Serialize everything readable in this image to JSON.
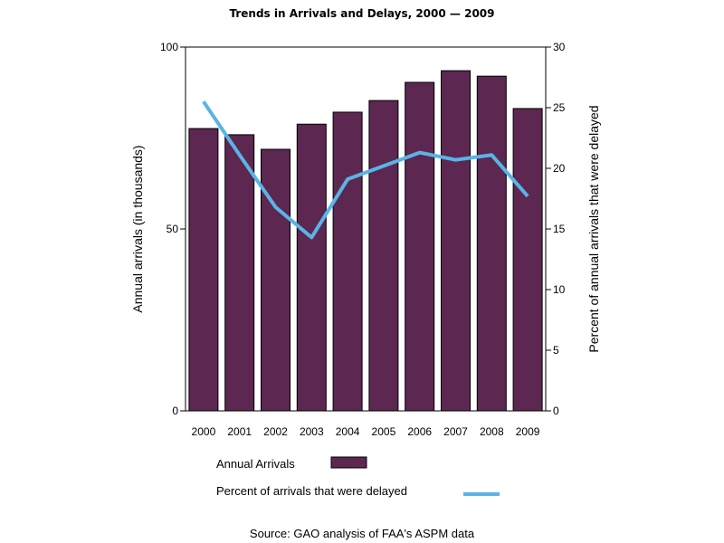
{
  "chart_data": {
    "type": "bar",
    "title": "Trends in Arrivals and Delays, 2000 — 2009",
    "categories": [
      "2000",
      "2001",
      "2002",
      "2003",
      "2004",
      "2005",
      "2006",
      "2007",
      "2008",
      "2009"
    ],
    "series": [
      {
        "name": "Annual Arrivals",
        "type": "bar",
        "axis": "left",
        "color": "#5c2750",
        "values": [
          77.6,
          75.9,
          71.9,
          78.8,
          82.1,
          85.3,
          90.3,
          93.5,
          92.0,
          83.1
        ]
      },
      {
        "name": "Percent of arrivals that were delayed",
        "type": "line",
        "axis": "right",
        "color": "#5ab4e5",
        "values": [
          25.5,
          21.1,
          16.8,
          14.3,
          19.1,
          20.2,
          21.3,
          20.7,
          21.1,
          17.7
        ]
      }
    ],
    "ylabel": "Annual arrivals (in thousands)",
    "ylim": [
      0,
      100
    ],
    "yticks": [
      0,
      50,
      100
    ],
    "y2label": "Percent of annual arrivals that were delayed",
    "y2lim": [
      0,
      30
    ],
    "y2ticks": [
      0,
      5,
      10,
      15,
      20,
      25,
      30
    ],
    "xlabel": "",
    "grid": false,
    "legend_placement": "bottom",
    "source": "Source: GAO analysis of FAA's ASPM data"
  }
}
